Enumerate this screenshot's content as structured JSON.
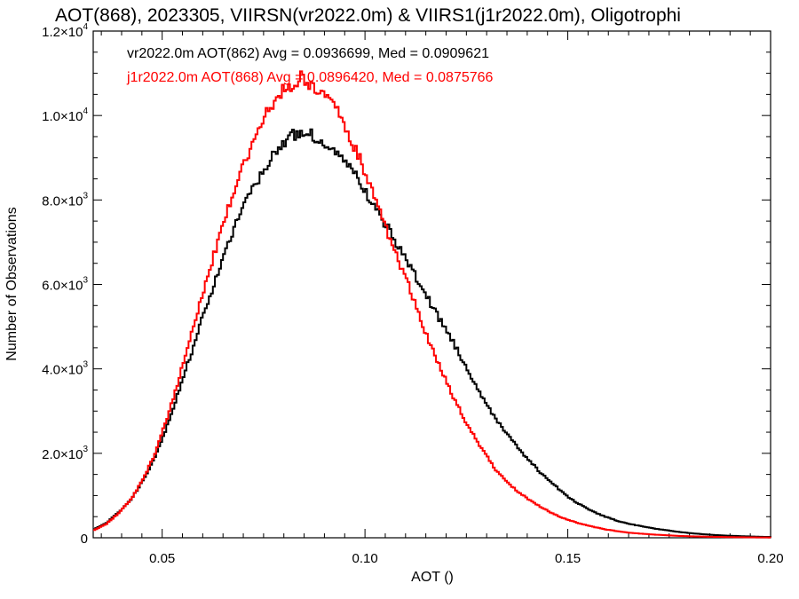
{
  "chart_data": {
    "type": "line",
    "title": "AOT(868), 2023305, VIIRSN(vr2022.0m) & VIIRS1(j1r2022.0m), Oligotrophi",
    "xlabel": "AOT ()",
    "ylabel": "Number of Observations",
    "xlim": [
      0.033,
      0.2
    ],
    "ylim": [
      0,
      12000
    ],
    "xticks": [
      0.05,
      0.1,
      0.15,
      0.2
    ],
    "xtick_labels": [
      "0.05",
      "0.10",
      "0.15",
      "0.20"
    ],
    "yticks": [
      0,
      2000,
      4000,
      6000,
      8000,
      10000,
      12000
    ],
    "ytick_labels": [
      {
        "mant": "0",
        "exp": ""
      },
      {
        "mant": "2.0×10",
        "exp": "3"
      },
      {
        "mant": "4.0×10",
        "exp": "3"
      },
      {
        "mant": "6.0×10",
        "exp": "3"
      },
      {
        "mant": "8.0×10",
        "exp": "3"
      },
      {
        "mant": "1.0×10",
        "exp": "4"
      },
      {
        "mant": "1.2×10",
        "exp": "4"
      }
    ],
    "grid": false,
    "legend_position": "top-left",
    "annotations": [
      "vr2022.0m AOT(862) Avg = 0.0936699, Med = 0.0909621",
      "j1r2022.0m AOT(868) Avg = 0.0896420, Med = 0.0875766"
    ],
    "series": [
      {
        "color": "#000000",
        "x": [
          0.033,
          0.036,
          0.039,
          0.042,
          0.045,
          0.048,
          0.051,
          0.054,
          0.057,
          0.06,
          0.063,
          0.066,
          0.069,
          0.072,
          0.075,
          0.078,
          0.081,
          0.084,
          0.087,
          0.09,
          0.093,
          0.096,
          0.099,
          0.102,
          0.105,
          0.108,
          0.111,
          0.114,
          0.117,
          0.12,
          0.123,
          0.126,
          0.129,
          0.132,
          0.135,
          0.138,
          0.141,
          0.144,
          0.147,
          0.15,
          0.153,
          0.156,
          0.159,
          0.162,
          0.165,
          0.168,
          0.171,
          0.174,
          0.177,
          0.18,
          0.183,
          0.186,
          0.189,
          0.192,
          0.195,
          0.198,
          0.2
        ],
        "y": [
          200,
          350,
          600,
          900,
          1350,
          1900,
          2650,
          3500,
          4400,
          5300,
          6150,
          6950,
          7650,
          8250,
          8750,
          9200,
          9500,
          9600,
          9520,
          9300,
          9150,
          8800,
          8300,
          7850,
          7400,
          6900,
          6400,
          5900,
          5350,
          4900,
          4350,
          3800,
          3300,
          2800,
          2450,
          2050,
          1750,
          1450,
          1200,
          950,
          780,
          620,
          500,
          400,
          330,
          270,
          220,
          180,
          140,
          110,
          85,
          65,
          50,
          40,
          30,
          22,
          18
        ]
      },
      {
        "color": "#ff0000",
        "x": [
          0.033,
          0.036,
          0.039,
          0.042,
          0.045,
          0.048,
          0.051,
          0.054,
          0.057,
          0.06,
          0.063,
          0.066,
          0.069,
          0.072,
          0.075,
          0.078,
          0.081,
          0.084,
          0.087,
          0.09,
          0.093,
          0.096,
          0.099,
          0.102,
          0.105,
          0.108,
          0.111,
          0.114,
          0.117,
          0.12,
          0.123,
          0.126,
          0.129,
          0.132,
          0.135,
          0.138,
          0.141,
          0.144,
          0.147,
          0.15,
          0.153,
          0.156,
          0.159,
          0.162,
          0.165,
          0.168,
          0.171,
          0.174,
          0.177,
          0.18,
          0.183,
          0.186,
          0.189,
          0.192,
          0.195,
          0.198,
          0.2
        ],
        "y": [
          180,
          330,
          580,
          900,
          1380,
          2000,
          2850,
          3800,
          4850,
          5850,
          6850,
          7800,
          8650,
          9350,
          9950,
          10450,
          10700,
          10900,
          10700,
          10450,
          10100,
          9500,
          8850,
          8100,
          7300,
          6550,
          5850,
          5050,
          4300,
          3650,
          3050,
          2500,
          2050,
          1600,
          1300,
          1050,
          850,
          680,
          530,
          420,
          330,
          260,
          200,
          155,
          120,
          95,
          75,
          60,
          45,
          35,
          28,
          22,
          17,
          13,
          10,
          8,
          6
        ]
      }
    ]
  }
}
